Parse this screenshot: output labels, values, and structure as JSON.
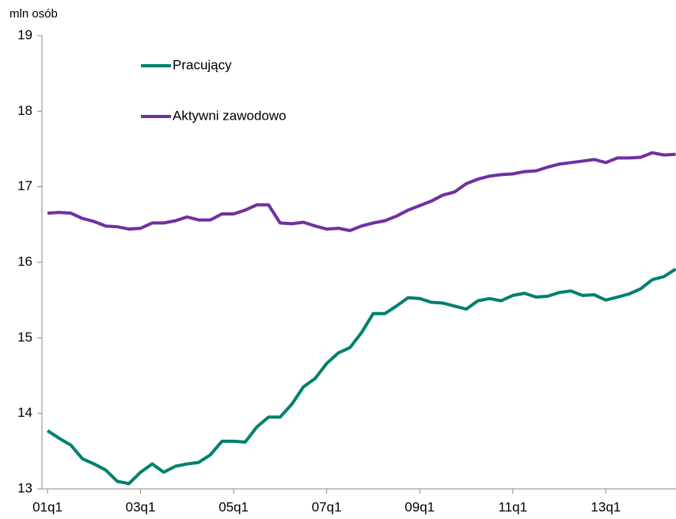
{
  "chart_data": {
    "type": "line",
    "y_label": "mln osób",
    "categories": [
      "01q1",
      null,
      null,
      null,
      null,
      null,
      null,
      null,
      "03q1",
      null,
      null,
      null,
      null,
      null,
      null,
      null,
      "05q1",
      null,
      null,
      null,
      null,
      null,
      null,
      null,
      "07q1",
      null,
      null,
      null,
      null,
      null,
      null,
      null,
      "09q1",
      null,
      null,
      null,
      null,
      null,
      null,
      null,
      "11q1",
      null,
      null,
      null,
      null,
      null,
      null,
      null,
      "13q1",
      null,
      null,
      null,
      null,
      null,
      null
    ],
    "series": [
      {
        "name": "Pracujący",
        "color": "#00806e",
        "values": [
          13.77,
          13.67,
          13.58,
          13.4,
          13.33,
          13.25,
          13.1,
          13.07,
          13.22,
          13.33,
          13.22,
          13.3,
          13.33,
          13.35,
          13.45,
          13.63,
          13.63,
          13.62,
          13.82,
          13.95,
          13.95,
          14.12,
          14.35,
          14.46,
          14.66,
          14.8,
          14.87,
          15.07,
          15.32,
          15.32,
          15.42,
          15.53,
          15.52,
          15.47,
          15.46,
          15.42,
          15.38,
          15.49,
          15.52,
          15.49,
          15.56,
          15.59,
          15.54,
          15.55,
          15.6,
          15.62,
          15.56,
          15.57,
          15.5,
          15.54,
          15.58,
          15.65,
          15.77,
          15.81,
          15.91
        ]
      },
      {
        "name": "Aktywni zawodowo",
        "color": "#7030a0",
        "values": [
          16.65,
          16.66,
          16.65,
          16.58,
          16.54,
          16.48,
          16.47,
          16.44,
          16.45,
          16.52,
          16.52,
          16.55,
          16.6,
          16.56,
          16.56,
          16.64,
          16.64,
          16.69,
          16.76,
          16.76,
          16.52,
          16.51,
          16.53,
          16.48,
          16.44,
          16.45,
          16.42,
          16.48,
          16.52,
          16.55,
          16.61,
          16.69,
          16.75,
          16.81,
          16.89,
          16.93,
          17.04,
          17.1,
          17.14,
          17.16,
          17.17,
          17.2,
          17.21,
          17.26,
          17.3,
          17.32,
          17.34,
          17.36,
          17.32,
          17.38,
          17.38,
          17.39,
          17.45,
          17.42,
          17.43
        ]
      }
    ],
    "ylim": [
      13,
      19
    ],
    "yticks": [
      13,
      14,
      15,
      16,
      17,
      18,
      19
    ],
    "grid": false,
    "legend": "upper left"
  }
}
